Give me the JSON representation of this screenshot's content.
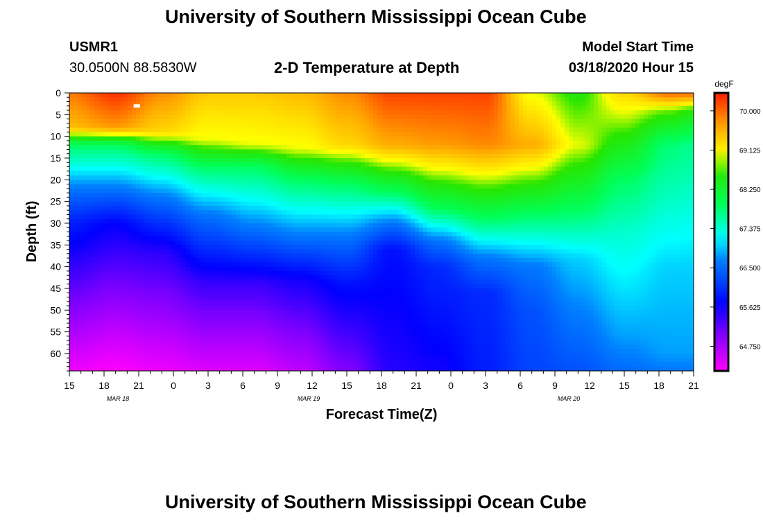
{
  "page": {
    "title_top": "University of Southern Mississippi Ocean Cube",
    "title_bottom": "University of Southern Mississippi Ocean Cube",
    "station_id": "USMR1",
    "station_coords": "30.0500N 88.5830W",
    "model_start_label": "Model Start Time",
    "model_start_value": "03/18/2020 Hour 15"
  },
  "chart_data": {
    "type": "heatmap",
    "title": "2-D Temperature at Depth",
    "xlabel": "Forecast Time(Z)",
    "ylabel": "Depth (ft)",
    "x_ticks": [
      "15",
      "18",
      "21",
      "0",
      "3",
      "6",
      "9",
      "12",
      "15",
      "18",
      "21",
      "0",
      "3",
      "6",
      "9",
      "12",
      "15",
      "18",
      "21"
    ],
    "date_labels": [
      {
        "text": "MAR 18",
        "hour_offset": 4.2
      },
      {
        "text": "MAR 19",
        "hour_offset": 20.7
      },
      {
        "text": "MAR 20",
        "hour_offset": 43.2
      }
    ],
    "xlim_hours": [
      0,
      54
    ],
    "y_ticks": [
      0,
      5,
      10,
      15,
      20,
      25,
      30,
      35,
      40,
      45,
      50,
      55,
      60
    ],
    "ylim": [
      0,
      64
    ],
    "colorbar": {
      "unit": "degF",
      "min": 64.2,
      "max": 70.4,
      "tick_values": [
        70.0,
        69.125,
        68.25,
        67.375,
        66.5,
        65.625,
        64.75
      ],
      "tick_labels": [
        "70.000",
        "69.125",
        "68.250",
        "67.375",
        "66.500",
        "65.625",
        "64.750"
      ]
    },
    "grid": false,
    "columns": [
      {
        "hour": 0,
        "depths": [
          0,
          8,
          12,
          22,
          30,
          64
        ],
        "temps": [
          69.9,
          69.5,
          67.9,
          66.6,
          65.9,
          64.3
        ]
      },
      {
        "hour": 4,
        "depths": [
          0,
          8,
          12,
          22,
          30,
          64
        ],
        "temps": [
          70.3,
          69.7,
          67.9,
          66.6,
          65.7,
          64.2
        ]
      },
      {
        "hour": 8,
        "depths": [
          0,
          9,
          14,
          24,
          36,
          64
        ],
        "temps": [
          69.8,
          69.3,
          67.9,
          66.6,
          65.5,
          64.3
        ]
      },
      {
        "hour": 12,
        "depths": [
          0,
          11,
          17,
          28,
          44,
          64
        ],
        "temps": [
          69.4,
          69.0,
          67.9,
          66.6,
          65.4,
          64.4
        ]
      },
      {
        "hour": 16,
        "depths": [
          0,
          12,
          17,
          31,
          44,
          64
        ],
        "temps": [
          69.4,
          69.0,
          67.9,
          66.6,
          65.4,
          64.4
        ]
      },
      {
        "hour": 20,
        "depths": [
          0,
          13,
          20,
          33,
          43,
          64
        ],
        "temps": [
          69.5,
          69.0,
          67.9,
          66.6,
          65.6,
          64.6
        ]
      },
      {
        "hour": 24,
        "depths": [
          0,
          12,
          21,
          33,
          44,
          64
        ],
        "temps": [
          69.8,
          69.3,
          67.9,
          66.6,
          65.8,
          65.0
        ]
      },
      {
        "hour": 28,
        "depths": [
          0,
          12,
          23,
          30,
          36,
          64
        ],
        "temps": [
          70.2,
          69.6,
          67.9,
          66.6,
          65.8,
          65.5
        ]
      },
      {
        "hour": 32,
        "depths": [
          0,
          12,
          27,
          34,
          40,
          64
        ],
        "temps": [
          70.2,
          69.7,
          67.9,
          66.6,
          66.0,
          65.6
        ]
      },
      {
        "hour": 36,
        "depths": [
          0,
          12,
          29,
          38,
          46,
          64
        ],
        "temps": [
          70.2,
          69.8,
          67.9,
          66.6,
          66.0,
          65.9
        ]
      },
      {
        "hour": 40,
        "depths": [
          0,
          12,
          28,
          40,
          50,
          64
        ],
        "temps": [
          69.0,
          69.6,
          67.9,
          66.6,
          66.3,
          66.2
        ]
      },
      {
        "hour": 44,
        "depths": [
          0,
          12,
          27,
          38,
          52,
          64
        ],
        "temps": [
          68.6,
          69.0,
          67.9,
          67.0,
          66.6,
          66.3
        ]
      },
      {
        "hour": 48,
        "depths": [
          0,
          6,
          20,
          32,
          56,
          64
        ],
        "temps": [
          69.3,
          68.9,
          67.9,
          67.4,
          66.8,
          66.5
        ]
      },
      {
        "hour": 52,
        "depths": [
          0,
          4,
          12,
          40,
          60,
          64
        ],
        "temps": [
          70.0,
          68.8,
          67.8,
          67.0,
          66.8,
          66.6
        ]
      },
      {
        "hour": 54,
        "depths": [
          0,
          4,
          12,
          40,
          60,
          64
        ],
        "temps": [
          70.0,
          68.6,
          67.7,
          67.0,
          66.8,
          66.6
        ]
      }
    ],
    "marker": {
      "hour": 5.8,
      "depth": 3
    }
  }
}
